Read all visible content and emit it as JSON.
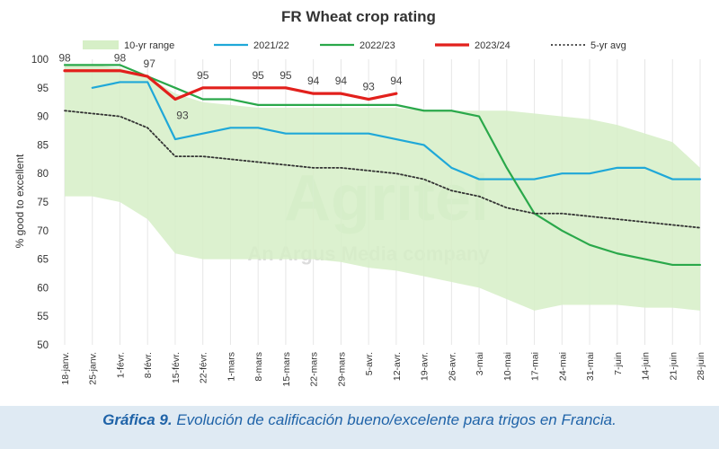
{
  "chart_data": {
    "type": "line",
    "title": "FR Wheat crop rating",
    "ylabel": "% good to excellent",
    "xlabel": "",
    "ylim": [
      50,
      100
    ],
    "yticks": [
      50,
      55,
      60,
      65,
      70,
      75,
      80,
      85,
      90,
      95,
      100
    ],
    "grid": "vertical",
    "legend_position": "top",
    "categories": [
      "18-janv.",
      "25-janv.",
      "1-févr.",
      "8-févr.",
      "15-févr.",
      "22-févr.",
      "1-mars",
      "8-mars",
      "15-mars",
      "22-mars",
      "29-mars",
      "5-avr.",
      "12-avr.",
      "19-avr.",
      "26-avr.",
      "3-mai",
      "10-mai",
      "17-mai",
      "24-mai",
      "31-mai",
      "7-juin",
      "14-juin",
      "21-juin",
      "28-juin"
    ],
    "range": {
      "name": "10-yr range",
      "color": "#d6efc7",
      "upper": [
        99,
        99,
        98.5,
        97,
        94,
        92.5,
        92,
        91.5,
        91.5,
        91.5,
        91.5,
        91.5,
        91.5,
        91,
        91,
        91,
        91,
        90.5,
        90,
        89.5,
        88.5,
        87,
        85.5,
        81
      ],
      "lower": [
        76,
        76,
        75,
        72,
        66,
        65,
        65,
        65,
        65,
        65,
        64.5,
        63.5,
        63,
        62,
        61,
        60,
        58,
        56,
        57,
        57,
        57,
        56.5,
        56.5,
        56
      ]
    },
    "series": [
      {
        "name": "2021/22",
        "color": "#1fa8d8",
        "values": [
          null,
          95,
          96,
          96,
          86,
          87,
          88,
          88,
          87,
          87,
          87,
          87,
          86,
          85,
          81,
          79,
          79,
          79,
          80,
          80,
          81,
          81,
          79,
          79
        ]
      },
      {
        "name": "2022/23",
        "color": "#2aa84a",
        "values": [
          99,
          99,
          99,
          97,
          95,
          93,
          93,
          92,
          92,
          92,
          92,
          92,
          92,
          91,
          91,
          90,
          81,
          73,
          70,
          67.5,
          66,
          65,
          64,
          64
        ]
      },
      {
        "name": "2023/24",
        "color": "#e2201c",
        "values": [
          98,
          98,
          98,
          97,
          93,
          95,
          95,
          95,
          95,
          94,
          94,
          93,
          94,
          null,
          null,
          null,
          null,
          null,
          null,
          null,
          null,
          null,
          null,
          null
        ]
      },
      {
        "name": "5-yr avg",
        "color": "#333333",
        "dashed": true,
        "values": [
          91,
          90.5,
          90,
          88,
          83,
          83,
          82.5,
          82,
          81.5,
          81,
          81,
          80.5,
          80,
          79,
          77,
          76,
          74,
          73,
          73,
          72.5,
          72,
          71.5,
          71,
          70.5
        ]
      }
    ],
    "data_labels": [
      {
        "category": "18-janv.",
        "value": 98,
        "text": "98"
      },
      {
        "category": "1-févr.",
        "value": 98,
        "text": "98"
      },
      {
        "category": "8-févr.",
        "value": 97,
        "text": "97"
      },
      {
        "category": "15-févr.",
        "value": 93,
        "text": "93"
      },
      {
        "category": "22-févr.",
        "value": 95,
        "text": "95"
      },
      {
        "category": "8-mars",
        "value": 95,
        "text": "95"
      },
      {
        "category": "15-mars",
        "value": 95,
        "text": "95"
      },
      {
        "category": "22-mars",
        "value": 94,
        "text": "94"
      },
      {
        "category": "29-mars",
        "value": 94,
        "text": "94"
      },
      {
        "category": "5-avr.",
        "value": 93,
        "text": "93"
      },
      {
        "category": "12-avr.",
        "value": 94,
        "text": "94"
      }
    ],
    "watermark": [
      "Agritel",
      "An Argus Media company"
    ]
  },
  "caption": {
    "prefix": "Gráfica 9.",
    "text": " Evolución de calificación bueno/excelente para trigos en Francia."
  }
}
